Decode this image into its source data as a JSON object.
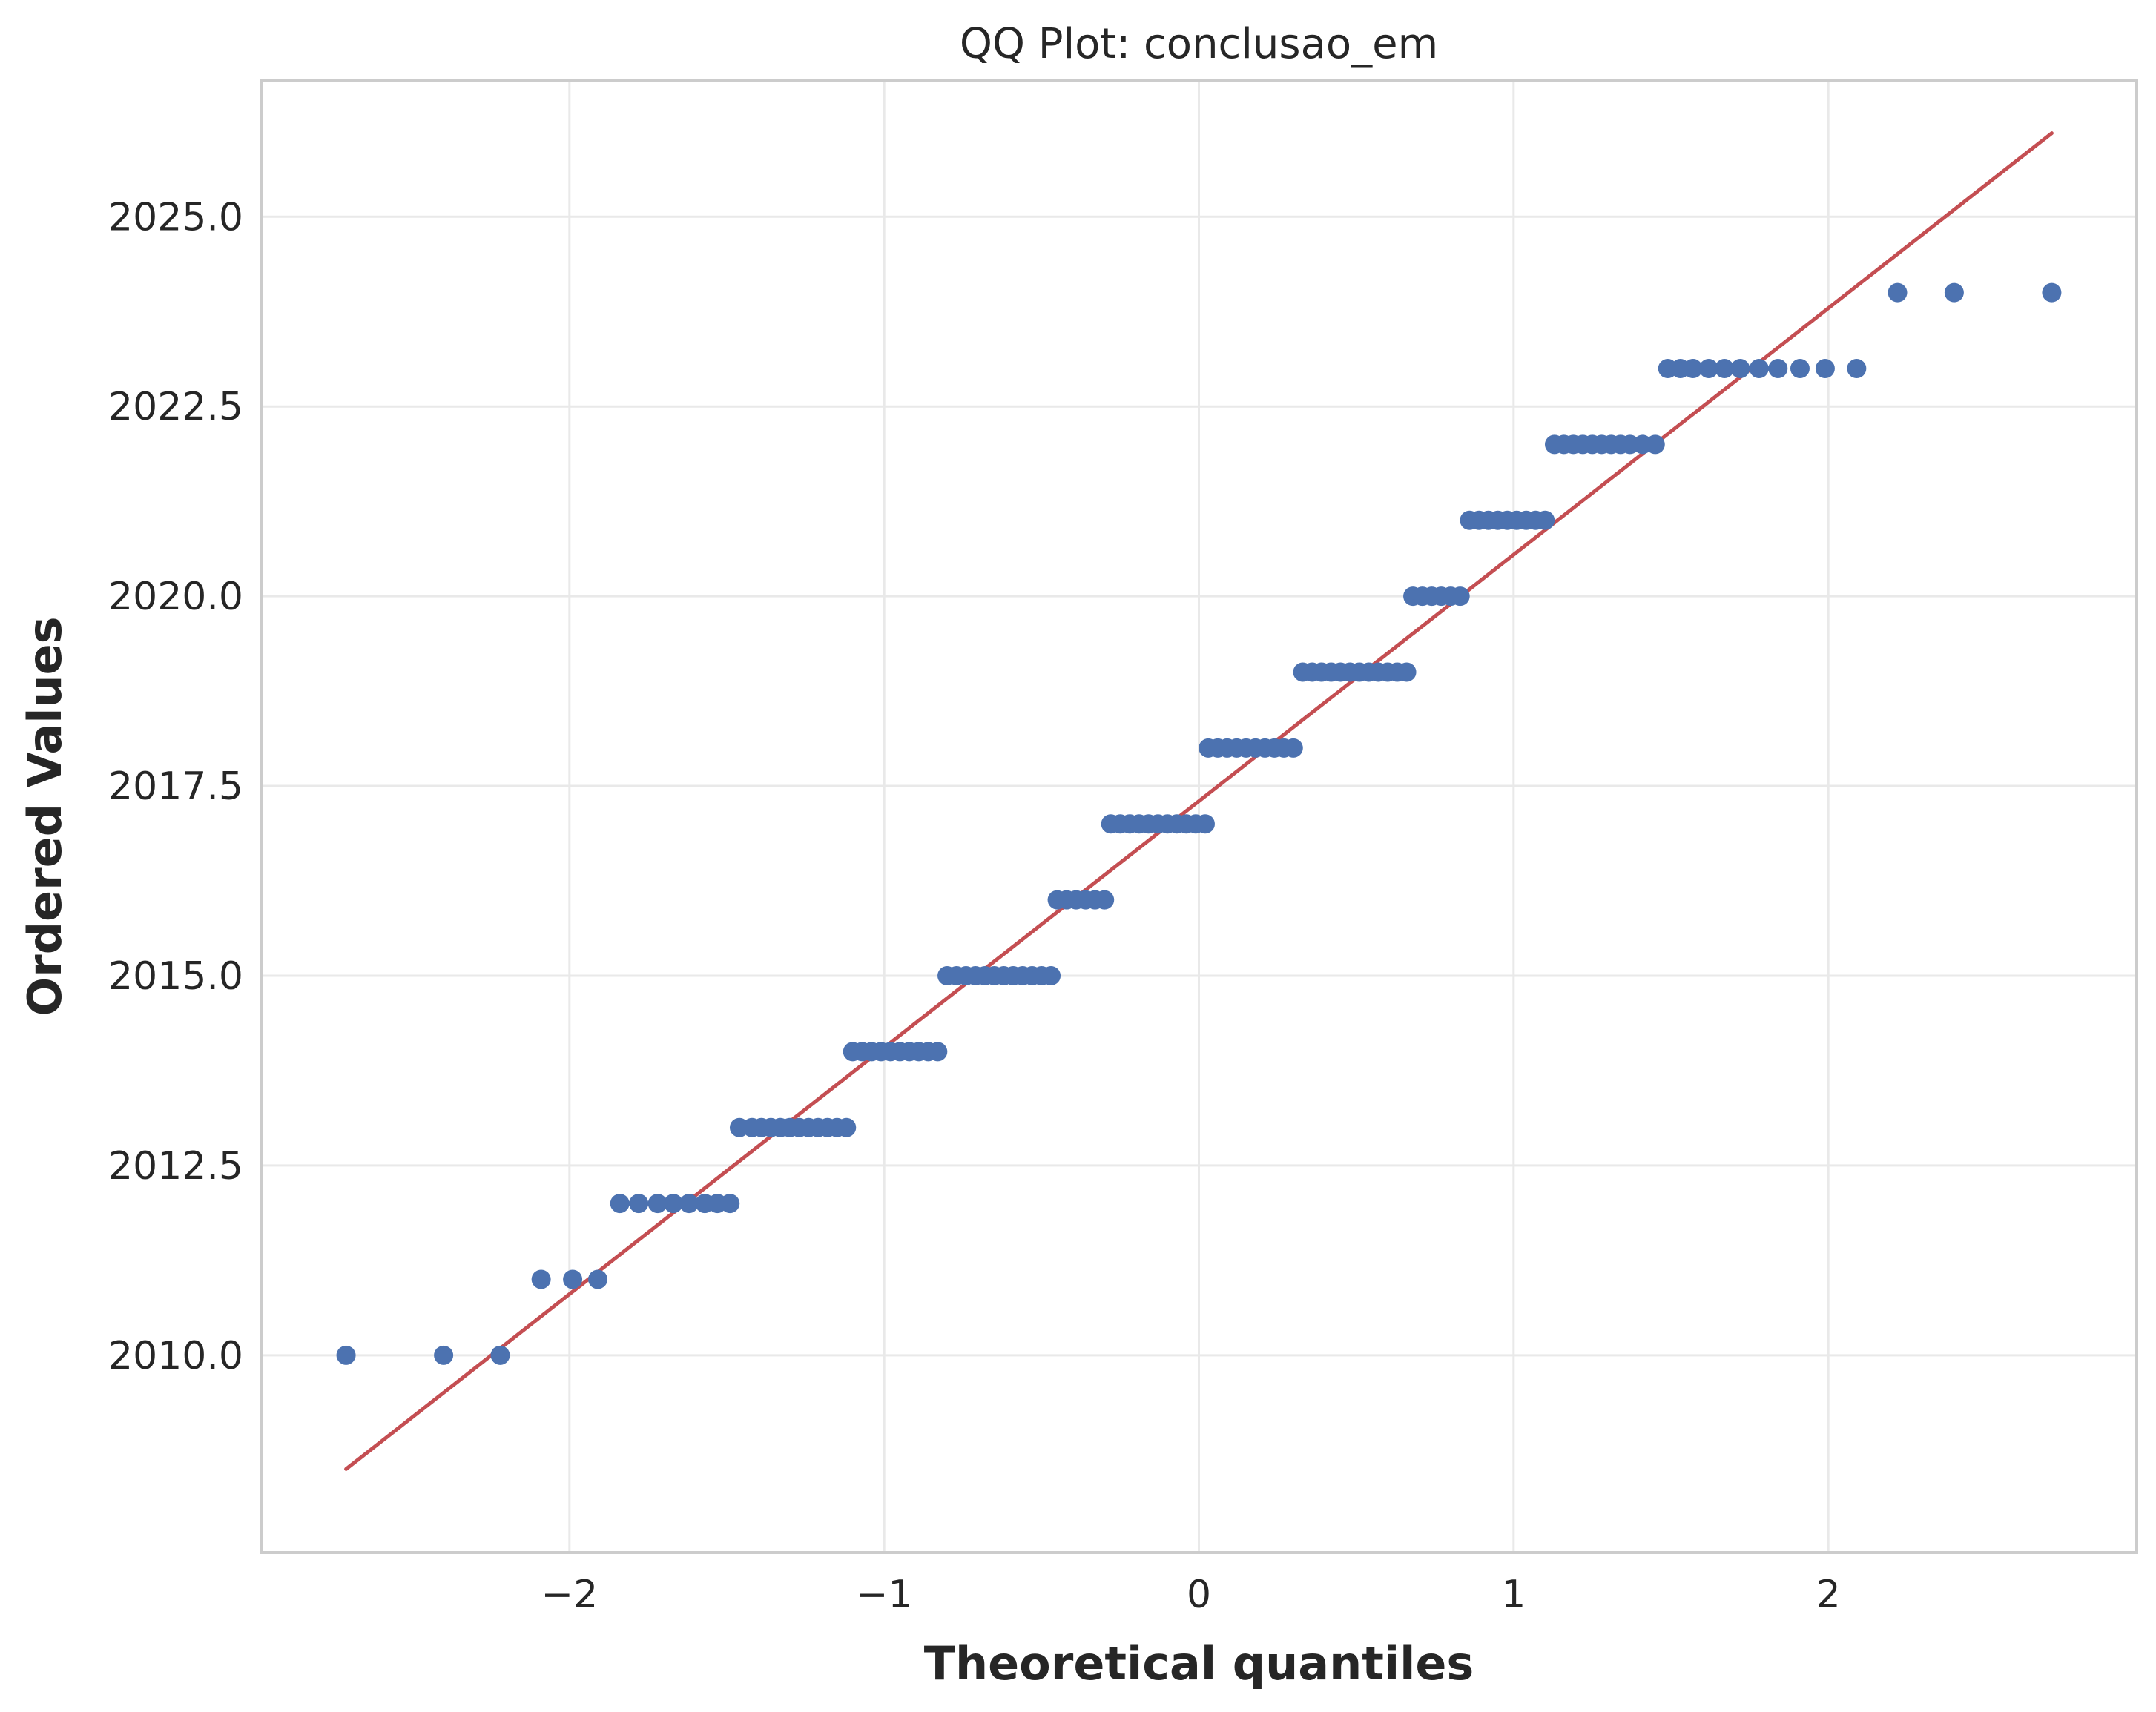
{
  "chart_data": {
    "type": "scatter",
    "title": "QQ Plot: conclusao_em",
    "xlabel": "Theoretical quantiles",
    "ylabel": "Ordered Values",
    "xlim": [
      -2.98,
      2.98
    ],
    "ylim": [
      2007.4,
      2026.8
    ],
    "x_ticks": [
      -2,
      -1,
      0,
      1,
      2
    ],
    "x_tick_labels": [
      "−2",
      "−1",
      "0",
      "1",
      "2"
    ],
    "y_ticks": [
      2010.0,
      2012.5,
      2015.0,
      2017.5,
      2020.0,
      2022.5,
      2025.0
    ],
    "y_tick_labels": [
      "2010.0",
      "2012.5",
      "2015.0",
      "2017.5",
      "2020.0",
      "2022.5",
      "2025.0"
    ],
    "grid": true,
    "point_color": "#4c72b0",
    "line_color": "#c44e52",
    "fit_line": {
      "x": [
        -2.71,
        2.71
      ],
      "y": [
        2008.5,
        2026.1
      ]
    },
    "points": [
      {
        "x": -2.71,
        "y": 2010
      },
      {
        "x": -2.4,
        "y": 2010
      },
      {
        "x": -2.22,
        "y": 2010
      },
      {
        "x": -2.09,
        "y": 2011
      },
      {
        "x": -1.99,
        "y": 2011
      },
      {
        "x": -1.91,
        "y": 2011
      },
      {
        "x": -1.84,
        "y": 2012
      },
      {
        "x": -1.78,
        "y": 2012
      },
      {
        "x": -1.72,
        "y": 2012
      },
      {
        "x": -1.67,
        "y": 2012
      },
      {
        "x": -1.62,
        "y": 2012
      },
      {
        "x": -1.57,
        "y": 2012
      },
      {
        "x": -1.53,
        "y": 2012
      },
      {
        "x": -1.49,
        "y": 2012
      },
      {
        "x": -1.46,
        "y": 2013
      },
      {
        "x": -1.42,
        "y": 2013
      },
      {
        "x": -1.39,
        "y": 2013
      },
      {
        "x": -1.36,
        "y": 2013
      },
      {
        "x": -1.33,
        "y": 2013
      },
      {
        "x": -1.3,
        "y": 2013
      },
      {
        "x": -1.27,
        "y": 2013
      },
      {
        "x": -1.24,
        "y": 2013
      },
      {
        "x": -1.21,
        "y": 2013
      },
      {
        "x": -1.18,
        "y": 2013
      },
      {
        "x": -1.15,
        "y": 2013
      },
      {
        "x": -1.12,
        "y": 2013
      },
      {
        "x": -1.1,
        "y": 2014
      },
      {
        "x": -1.07,
        "y": 2014
      },
      {
        "x": -1.04,
        "y": 2014
      },
      {
        "x": -1.01,
        "y": 2014
      },
      {
        "x": -0.98,
        "y": 2014
      },
      {
        "x": -0.95,
        "y": 2014
      },
      {
        "x": -0.92,
        "y": 2014
      },
      {
        "x": -0.89,
        "y": 2014
      },
      {
        "x": -0.86,
        "y": 2014
      },
      {
        "x": -0.83,
        "y": 2014
      },
      {
        "x": -0.8,
        "y": 2015
      },
      {
        "x": -0.77,
        "y": 2015
      },
      {
        "x": -0.74,
        "y": 2015
      },
      {
        "x": -0.71,
        "y": 2015
      },
      {
        "x": -0.68,
        "y": 2015
      },
      {
        "x": -0.65,
        "y": 2015
      },
      {
        "x": -0.62,
        "y": 2015
      },
      {
        "x": -0.59,
        "y": 2015
      },
      {
        "x": -0.56,
        "y": 2015
      },
      {
        "x": -0.53,
        "y": 2015
      },
      {
        "x": -0.5,
        "y": 2015
      },
      {
        "x": -0.47,
        "y": 2015
      },
      {
        "x": -0.45,
        "y": 2016
      },
      {
        "x": -0.42,
        "y": 2016
      },
      {
        "x": -0.39,
        "y": 2016
      },
      {
        "x": -0.36,
        "y": 2016
      },
      {
        "x": -0.33,
        "y": 2016
      },
      {
        "x": -0.3,
        "y": 2016
      },
      {
        "x": -0.28,
        "y": 2017
      },
      {
        "x": -0.25,
        "y": 2017
      },
      {
        "x": -0.22,
        "y": 2017
      },
      {
        "x": -0.19,
        "y": 2017
      },
      {
        "x": -0.16,
        "y": 2017
      },
      {
        "x": -0.13,
        "y": 2017
      },
      {
        "x": -0.1,
        "y": 2017
      },
      {
        "x": -0.07,
        "y": 2017
      },
      {
        "x": -0.04,
        "y": 2017
      },
      {
        "x": -0.01,
        "y": 2017
      },
      {
        "x": 0.02,
        "y": 2017
      },
      {
        "x": 0.03,
        "y": 2018
      },
      {
        "x": 0.06,
        "y": 2018
      },
      {
        "x": 0.09,
        "y": 2018
      },
      {
        "x": 0.12,
        "y": 2018
      },
      {
        "x": 0.15,
        "y": 2018
      },
      {
        "x": 0.18,
        "y": 2018
      },
      {
        "x": 0.21,
        "y": 2018
      },
      {
        "x": 0.24,
        "y": 2018
      },
      {
        "x": 0.27,
        "y": 2018
      },
      {
        "x": 0.3,
        "y": 2018
      },
      {
        "x": 0.33,
        "y": 2019
      },
      {
        "x": 0.36,
        "y": 2019
      },
      {
        "x": 0.39,
        "y": 2019
      },
      {
        "x": 0.42,
        "y": 2019
      },
      {
        "x": 0.45,
        "y": 2019
      },
      {
        "x": 0.48,
        "y": 2019
      },
      {
        "x": 0.51,
        "y": 2019
      },
      {
        "x": 0.54,
        "y": 2019
      },
      {
        "x": 0.57,
        "y": 2019
      },
      {
        "x": 0.6,
        "y": 2019
      },
      {
        "x": 0.63,
        "y": 2019
      },
      {
        "x": 0.66,
        "y": 2019
      },
      {
        "x": 0.68,
        "y": 2020
      },
      {
        "x": 0.71,
        "y": 2020
      },
      {
        "x": 0.74,
        "y": 2020
      },
      {
        "x": 0.77,
        "y": 2020
      },
      {
        "x": 0.8,
        "y": 2020
      },
      {
        "x": 0.83,
        "y": 2020
      },
      {
        "x": 0.86,
        "y": 2021
      },
      {
        "x": 0.89,
        "y": 2021
      },
      {
        "x": 0.92,
        "y": 2021
      },
      {
        "x": 0.95,
        "y": 2021
      },
      {
        "x": 0.98,
        "y": 2021
      },
      {
        "x": 1.01,
        "y": 2021
      },
      {
        "x": 1.04,
        "y": 2021
      },
      {
        "x": 1.07,
        "y": 2021
      },
      {
        "x": 1.1,
        "y": 2021
      },
      {
        "x": 1.13,
        "y": 2022
      },
      {
        "x": 1.16,
        "y": 2022
      },
      {
        "x": 1.19,
        "y": 2022
      },
      {
        "x": 1.22,
        "y": 2022
      },
      {
        "x": 1.25,
        "y": 2022
      },
      {
        "x": 1.28,
        "y": 2022
      },
      {
        "x": 1.31,
        "y": 2022
      },
      {
        "x": 1.34,
        "y": 2022
      },
      {
        "x": 1.37,
        "y": 2022
      },
      {
        "x": 1.41,
        "y": 2022
      },
      {
        "x": 1.45,
        "y": 2022
      },
      {
        "x": 1.49,
        "y": 2023
      },
      {
        "x": 1.53,
        "y": 2023
      },
      {
        "x": 1.57,
        "y": 2023
      },
      {
        "x": 1.62,
        "y": 2023
      },
      {
        "x": 1.67,
        "y": 2023
      },
      {
        "x": 1.72,
        "y": 2023
      },
      {
        "x": 1.78,
        "y": 2023
      },
      {
        "x": 1.84,
        "y": 2023
      },
      {
        "x": 1.91,
        "y": 2023
      },
      {
        "x": 1.99,
        "y": 2023
      },
      {
        "x": 2.09,
        "y": 2023
      },
      {
        "x": 2.22,
        "y": 2024
      },
      {
        "x": 2.4,
        "y": 2024
      },
      {
        "x": 2.71,
        "y": 2024
      }
    ]
  }
}
